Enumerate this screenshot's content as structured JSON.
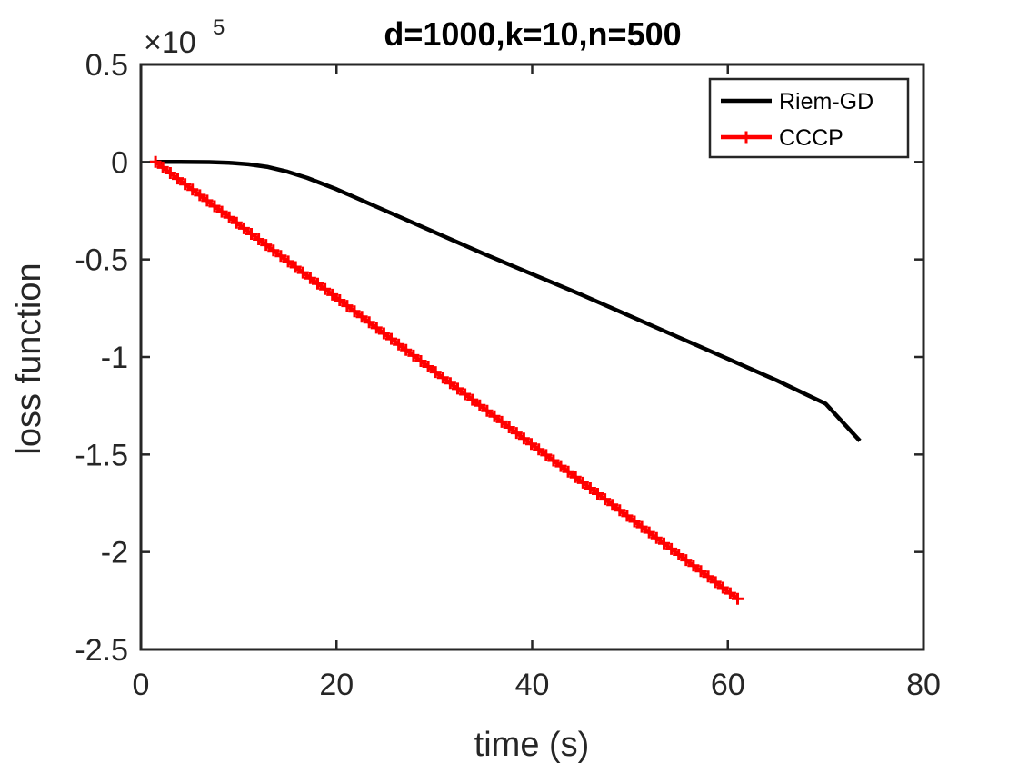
{
  "chart_data": {
    "type": "line",
    "title": "d=1000,k=10,n=500",
    "xlabel": "time (s)",
    "ylabel": "loss function",
    "xlim": [
      0,
      80
    ],
    "ylim": [
      -2.5,
      0.5
    ],
    "y_exponent_label": "×10",
    "y_exponent_power": "5",
    "grid": false,
    "legend_position": "top-right",
    "xticks": [
      0,
      20,
      40,
      60,
      80
    ],
    "xtick_labels": [
      "0",
      "20",
      "40",
      "60",
      "80"
    ],
    "yticks": [
      0.5,
      0,
      -0.5,
      -1,
      -1.5,
      -2,
      -2.5
    ],
    "ytick_labels": [
      "0.5",
      "0",
      "-0.5",
      "-1",
      "-1.5",
      "-2",
      "-2.5"
    ],
    "series": [
      {
        "name": "Riem-GD",
        "color": "#000000",
        "marker": "none",
        "x": [
          1.5,
          4,
          7,
          9,
          11,
          13,
          15,
          17,
          20,
          25,
          30,
          35,
          40,
          45,
          50,
          55,
          60,
          65,
          70,
          73.5
        ],
        "y": [
          0.0,
          0.0,
          -0.001,
          -0.004,
          -0.012,
          -0.026,
          -0.05,
          -0.082,
          -0.14,
          -0.25,
          -0.36,
          -0.47,
          -0.575,
          -0.68,
          -0.79,
          -0.9,
          -1.01,
          -1.12,
          -1.24,
          -1.43
        ]
      },
      {
        "name": "CCCP",
        "color": "#ff0000",
        "marker": "+",
        "x": [
          1.5,
          61
        ],
        "y": [
          0.0,
          -2.24
        ],
        "marker_count": 80
      }
    ]
  }
}
